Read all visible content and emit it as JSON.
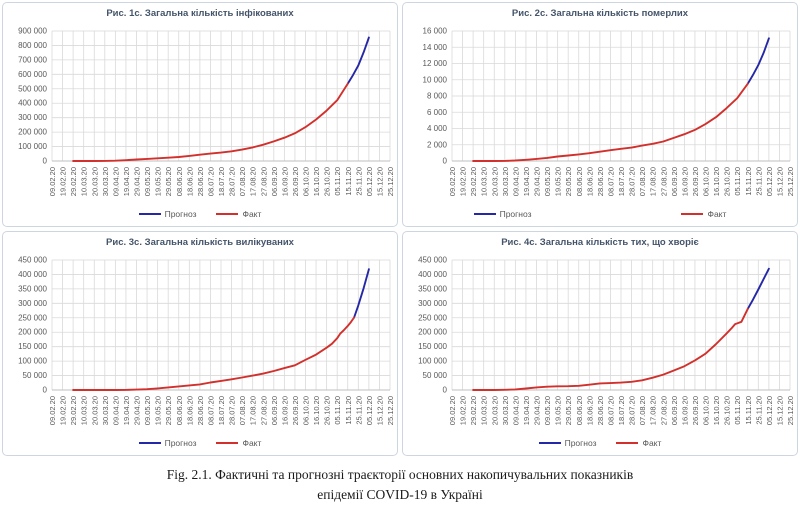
{
  "figure": {
    "caption_line1": "Fig. 2.1. Фактичні та прогнозні траєкторії основних накопичувальних показників",
    "caption_line2": "епідемії COVID-19 в Україні"
  },
  "colors": {
    "forecast": "#2528a6",
    "fact": "#d2302c",
    "title_text": "#44546a",
    "axis_text": "#595959",
    "gridline": "#d9d9d9",
    "axis_line": "#bfbfbf",
    "panel_border": "#cdd6e0"
  },
  "chart_data": {
    "type": "line",
    "x_span_days": 320,
    "x_tick_labels": [
      "09.02.20",
      "19.02.20",
      "29.02.20",
      "10.03.20",
      "20.03.20",
      "30.03.20",
      "09.04.20",
      "19.04.20",
      "29.04.20",
      "09.05.20",
      "19.05.20",
      "29.05.20",
      "08.06.20",
      "18.06.20",
      "28.06.20",
      "08.07.20",
      "18.07.20",
      "28.07.20",
      "07.08.20",
      "17.08.20",
      "27.08.20",
      "06.09.20",
      "16.09.20",
      "26.09.20",
      "06.10.20",
      "16.10.20",
      "26.10.20",
      "05.11.20",
      "15.11.20",
      "25.11.20",
      "05.12.20",
      "15.12.20",
      "25.12.20"
    ],
    "legend_labels": {
      "forecast": "Прогноз",
      "fact": "Факт"
    },
    "charts": [
      {
        "title": "Рис. 1с. Загальна кількість інфікованих",
        "ylim": [
          0,
          900000
        ],
        "ystep": 100000,
        "legend_spread": false,
        "series": [
          {
            "name": "Прогноз",
            "color": "#2528a6",
            "points": [
              [
                280,
                535857
              ],
              [
                285,
                595000
              ],
              [
                290,
                661000
              ],
              [
                295,
                752000
              ],
              [
                300,
                855000
              ]
            ]
          },
          {
            "name": "Факт",
            "color": "#d2302c",
            "points": [
              [
                20,
                0
              ],
              [
                30,
                1
              ],
              [
                40,
                41
              ],
              [
                50,
                550
              ],
              [
                60,
                2072
              ],
              [
                70,
                5710
              ],
              [
                80,
                10406
              ],
              [
                90,
                14710
              ],
              [
                100,
                18876
              ],
              [
                110,
                22811
              ],
              [
                120,
                27856
              ],
              [
                130,
                34984
              ],
              [
                140,
                43628
              ],
              [
                150,
                51224
              ],
              [
                160,
                58466
              ],
              [
                170,
                67096
              ],
              [
                180,
                78835
              ],
              [
                190,
                94436
              ],
              [
                200,
                112653
              ],
              [
                210,
                135894
              ],
              [
                220,
                161504
              ],
              [
                230,
                191671
              ],
              [
                240,
                234584
              ],
              [
                250,
                287231
              ],
              [
                260,
                348924
              ],
              [
                270,
                420617
              ],
              [
                280,
                535857
              ]
            ]
          }
        ]
      },
      {
        "title": "Рис. 2с. Загальна кількість померлих",
        "ylim": [
          0,
          16000
        ],
        "ystep": 2000,
        "legend_spread": true,
        "series": [
          {
            "name": "Прогноз",
            "color": "#2528a6",
            "points": [
              [
                280,
                9508
              ],
              [
                285,
                10600
              ],
              [
                290,
                11800
              ],
              [
                295,
                13300
              ],
              [
                300,
                15100
              ]
            ]
          },
          {
            "name": "Факт",
            "color": "#d2302c",
            "points": [
              [
                20,
                0
              ],
              [
                30,
                0
              ],
              [
                40,
                3
              ],
              [
                50,
                13
              ],
              [
                60,
                57
              ],
              [
                70,
                151
              ],
              [
                80,
                261
              ],
              [
                90,
                376
              ],
              [
                100,
                548
              ],
              [
                110,
                679
              ],
              [
                120,
                810
              ],
              [
                130,
                966
              ],
              [
                140,
                1147
              ],
              [
                150,
                1327
              ],
              [
                160,
                1498
              ],
              [
                170,
                1650
              ],
              [
                180,
                1897
              ],
              [
                190,
                2116
              ],
              [
                200,
                2397
              ],
              [
                210,
                2846
              ],
              [
                220,
                3296
              ],
              [
                230,
                3827
              ],
              [
                240,
                4540
              ],
              [
                250,
                5408
              ],
              [
                260,
                6511
              ],
              [
                270,
                7731
              ],
              [
                280,
                9508
              ]
            ]
          }
        ]
      },
      {
        "title": "Рис. 3с. Загальна кількість вилікуваних",
        "ylim": [
          0,
          450000
        ],
        "ystep": 50000,
        "legend_spread": false,
        "series": [
          {
            "name": "Прогноз",
            "color": "#2528a6",
            "points": [
              [
                286,
                251000
              ],
              [
                290,
                293000
              ],
              [
                295,
                352000
              ],
              [
                300,
                418000
              ]
            ]
          },
          {
            "name": "Факт",
            "color": "#d2302c",
            "points": [
              [
                20,
                0
              ],
              [
                30,
                0
              ],
              [
                40,
                1
              ],
              [
                50,
                8
              ],
              [
                60,
                61
              ],
              [
                70,
                359
              ],
              [
                80,
                1238
              ],
              [
                90,
                2909
              ],
              [
                100,
                5568
              ],
              [
                110,
                8934
              ],
              [
                120,
                12412
              ],
              [
                130,
                15798
              ],
              [
                140,
                19470
              ],
              [
                150,
                26106
              ],
              [
                160,
                31439
              ],
              [
                170,
                37202
              ],
              [
                180,
                43245
              ],
              [
                190,
                49813
              ],
              [
                200,
                56931
              ],
              [
                210,
                65614
              ],
              [
                220,
                75655
              ],
              [
                230,
                85358
              ],
              [
                240,
                104539
              ],
              [
                250,
                122510
              ],
              [
                260,
                146477
              ],
              [
                265,
                160000
              ],
              [
                270,
                179243
              ],
              [
                273,
                196000
              ],
              [
                276,
                206000
              ],
              [
                280,
                222000
              ],
              [
                283,
                235000
              ],
              [
                286,
                251000
              ]
            ]
          }
        ]
      },
      {
        "title": "Рис. 4с. Загальна кількість тих, що хворіє",
        "ylim": [
          0,
          450000
        ],
        "ystep": 50000,
        "legend_spread": false,
        "series": [
          {
            "name": "Прогноз",
            "color": "#2528a6",
            "points": [
              [
                280,
                281000
              ],
              [
                285,
                313000
              ],
              [
                290,
                348000
              ],
              [
                295,
                384000
              ],
              [
                300,
                420000
              ]
            ]
          },
          {
            "name": "Факт",
            "color": "#d2302c",
            "points": [
              [
                20,
                0
              ],
              [
                30,
                1
              ],
              [
                40,
                37
              ],
              [
                50,
                527
              ],
              [
                60,
                1954
              ],
              [
                70,
                5200
              ],
              [
                80,
                8907
              ],
              [
                90,
                11425
              ],
              [
                100,
                12760
              ],
              [
                110,
                13198
              ],
              [
                120,
                14634
              ],
              [
                130,
                18220
              ],
              [
                140,
                23011
              ],
              [
                150,
                23791
              ],
              [
                160,
                25529
              ],
              [
                170,
                28244
              ],
              [
                180,
                33693
              ],
              [
                190,
                42507
              ],
              [
                200,
                53325
              ],
              [
                210,
                67434
              ],
              [
                220,
                82553
              ],
              [
                230,
                102486
              ],
              [
                240,
                125505
              ],
              [
                250,
                159313
              ],
              [
                260,
                195936
              ],
              [
                265,
                215000
              ],
              [
                268,
                228000
              ],
              [
                271,
                232000
              ],
              [
                274,
                236000
              ],
              [
                280,
                281000
              ]
            ]
          }
        ]
      }
    ]
  }
}
